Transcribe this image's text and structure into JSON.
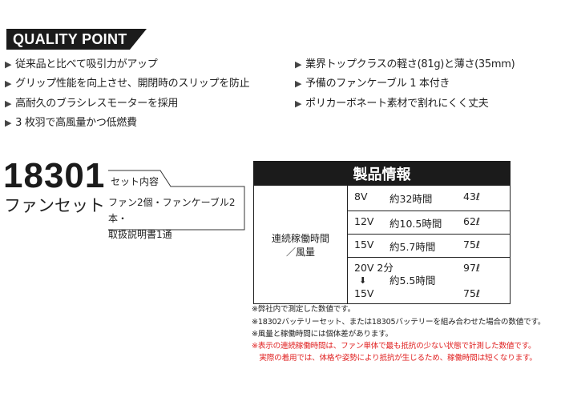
{
  "header": {
    "title": "QUALITY POINT"
  },
  "points_left": [
    "従来品と比べて吸引力がアップ",
    "グリップ性能を向上させ、開閉時のスリップを防止",
    "高耐久のブラシレスモーターを採用",
    "3 枚羽で高風量かつ低燃費"
  ],
  "points_right": [
    "業界トップクラスの軽さ(81g)と薄さ(35mm)",
    "予備のファンケーブル 1 本付き",
    "ポリカーボネート素材で割れにくく丈夫"
  ],
  "product": {
    "number": "18301",
    "name": "ファンセット",
    "set_label": "セット内容",
    "set_contents_1": "ファン2個・ファンケーブル2本・",
    "set_contents_2": "取扱説明書1通"
  },
  "table": {
    "title": "製品情報",
    "row_label_1": "連続稼働時間",
    "row_label_2": "／風量",
    "rows": [
      {
        "v": "8V",
        "t": "約32時間",
        "a": "43ℓ"
      },
      {
        "v": "12V",
        "t": "約10.5時間",
        "a": "62ℓ"
      },
      {
        "v": "15V",
        "t": "約5.7時間",
        "a": "75ℓ"
      }
    ],
    "last": {
      "v1": "20V 2分",
      "arrow": "⬇",
      "v2": "15V",
      "t": "約5.5時間",
      "a1": "97ℓ",
      "a2": "75ℓ"
    }
  },
  "notes": [
    "※弊社内で測定した数値です。",
    "※18302バッテリーセット、または18305バッテリーを組み合わせた場合の数値です。",
    "※風量と稼働時間には個体差があります。"
  ],
  "red_notes": [
    "※表示の連続稼働時間は、ファン単体で最も抵抗の少ない状態で計測した数値です。",
    "　実際の着用では、体格や姿勢により抵抗が生じるため、稼働時間は短くなります。"
  ],
  "colors": {
    "banner": "#1b1b1b",
    "red_note": "#e02020"
  }
}
